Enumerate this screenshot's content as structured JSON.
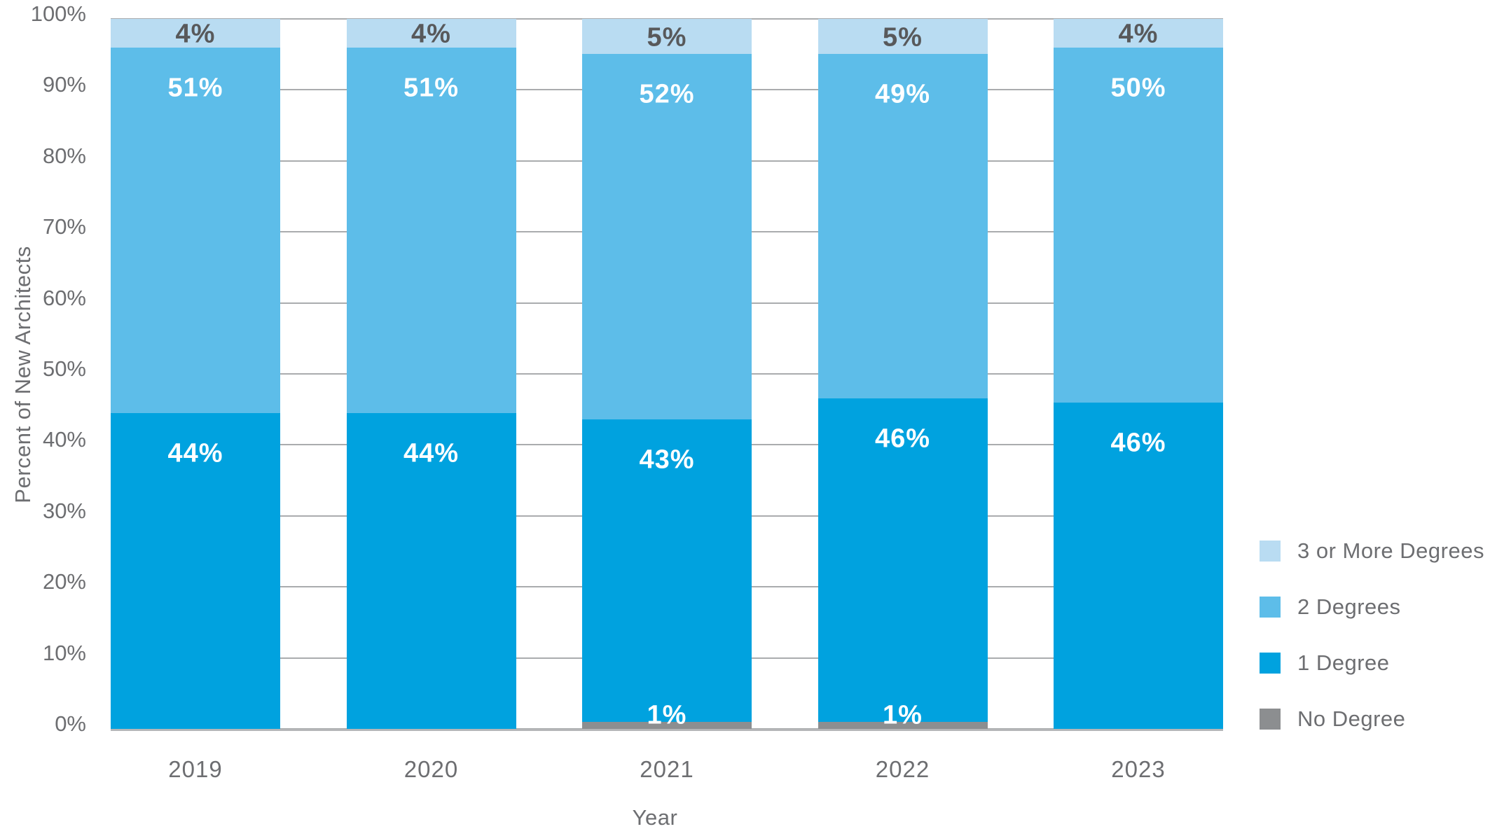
{
  "chart_data": {
    "type": "bar",
    "subtype": "stacked-percent-column",
    "title": "",
    "xlabel": "Year",
    "ylabel": "Percent of New Architects",
    "categories": [
      "2019",
      "2020",
      "2021",
      "2022",
      "2023"
    ],
    "series": [
      {
        "name": "No Degree",
        "color": "#8c8e90",
        "label_color": "#ffffff",
        "values": [
          0,
          0,
          1,
          1,
          0
        ]
      },
      {
        "name": "1 Degree",
        "color": "#00a2df",
        "label_color": "#ffffff",
        "values": [
          44,
          44,
          43,
          46,
          46
        ]
      },
      {
        "name": "2 Degrees",
        "color": "#5dbde9",
        "label_color": "#ffffff",
        "values": [
          51,
          51,
          52,
          49,
          50
        ]
      },
      {
        "name": "3 or More Degrees",
        "color": "#b9dcf2",
        "label_color": "#58595b",
        "values": [
          4,
          4,
          5,
          5,
          4
        ]
      }
    ],
    "legend_order_top_to_bottom": [
      "3 or More Degrees",
      "2 Degrees",
      "1 Degree",
      "No Degree"
    ],
    "legend_position": "right",
    "y_ticks": [
      "100%",
      "90%",
      "80%",
      "70%",
      "60%",
      "50%",
      "40%",
      "30%",
      "20%",
      "10%",
      "0%"
    ],
    "ylim": [
      0,
      100
    ],
    "grid": true,
    "value_label_format": "{v}%"
  },
  "colors": {
    "axis_text": "#6d6e71",
    "gridline": "#aaacae",
    "baseline": "#b5b6b8",
    "background": "#ffffff"
  }
}
